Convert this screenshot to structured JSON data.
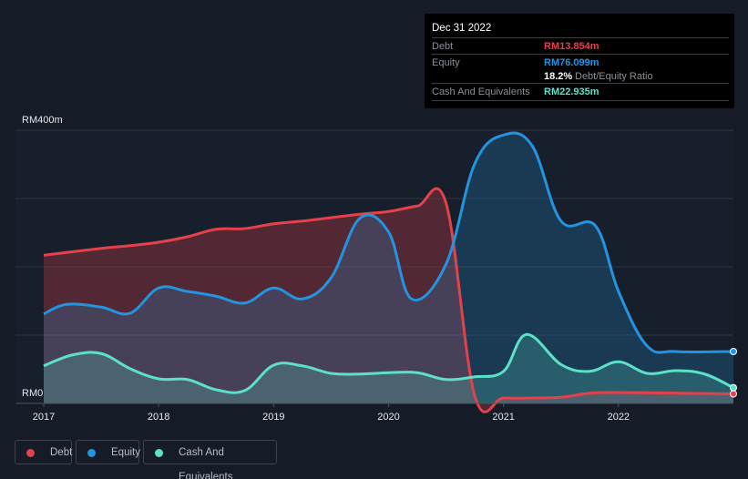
{
  "chart_data": {
    "type": "area",
    "title": "",
    "y_axis": {
      "top_label": "RM400m",
      "bottom_label": "RM0",
      "range": [
        0,
        400
      ]
    },
    "x_ticks": [
      "2017",
      "2018",
      "2019",
      "2020",
      "2021",
      "2022"
    ],
    "x_range": [
      2017,
      2023
    ],
    "series": [
      {
        "name": "Debt",
        "color": "#e5414a",
        "x": [
          2017,
          2017.5,
          2017.75,
          2018,
          2018.25,
          2018.5,
          2018.75,
          2019,
          2019.25,
          2019.5,
          2019.75,
          2020,
          2020.25,
          2020.5,
          2020.75,
          2021,
          2021.25,
          2021.5,
          2021.75,
          2022,
          2023
        ],
        "values": [
          217,
          227,
          231,
          236,
          244,
          255,
          256,
          263,
          267,
          272,
          277,
          281,
          289,
          293,
          11,
          8,
          8,
          9,
          15,
          16,
          14
        ]
      },
      {
        "name": "Equity",
        "color": "#2394df",
        "x": [
          2017,
          2017.2,
          2017.5,
          2017.75,
          2018,
          2018.25,
          2018.5,
          2018.75,
          2019,
          2019.25,
          2019.5,
          2019.75,
          2020,
          2020.2,
          2020.5,
          2020.75,
          2021,
          2021.25,
          2021.5,
          2021.8,
          2022,
          2022.25,
          2022.5,
          2023
        ],
        "values": [
          131,
          145,
          141,
          132,
          169,
          164,
          157,
          147,
          169,
          153,
          184,
          271,
          251,
          153,
          204,
          351,
          393,
          377,
          267,
          260,
          164,
          84,
          76,
          76
        ]
      },
      {
        "name": "Cash And Equivalents",
        "color": "#5de0c8",
        "x": [
          2017,
          2017.25,
          2017.5,
          2017.75,
          2018,
          2018.25,
          2018.5,
          2018.75,
          2019,
          2019.25,
          2019.5,
          2019.75,
          2020,
          2020.25,
          2020.5,
          2020.75,
          2021,
          2021.2,
          2021.5,
          2021.75,
          2022,
          2022.25,
          2022.5,
          2022.75,
          2023
        ],
        "values": [
          55,
          71,
          73,
          51,
          36,
          35,
          20,
          19,
          56,
          55,
          44,
          43,
          45,
          45,
          35,
          39,
          47,
          101,
          57,
          47,
          61,
          44,
          48,
          43,
          23
        ]
      }
    ]
  },
  "tooltip": {
    "date": "Dec 31 2022",
    "rows": [
      {
        "label": "Debt",
        "value": "RM13.854m",
        "color": "#e5414a"
      },
      {
        "label": "Equity",
        "value": "RM76.099m",
        "color": "#2394df"
      },
      {
        "label": "",
        "value": "18.2%",
        "suffix": "Debt/Equity Ratio",
        "color": "#ffffff"
      },
      {
        "label": "Cash And Equivalents",
        "value": "RM22.935m",
        "color": "#5de0c8"
      }
    ]
  },
  "legend": [
    "Debt",
    "Equity",
    "Cash And Equivalents"
  ]
}
